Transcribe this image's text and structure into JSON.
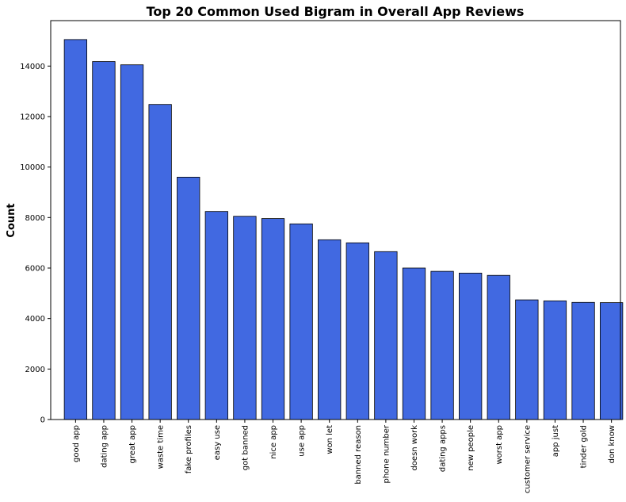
{
  "chart_data": {
    "type": "bar",
    "title": "Top 20 Common Used Bigram in Overall App Reviews",
    "xlabel": "",
    "ylabel": "Count",
    "ylim": [
      0,
      15800
    ],
    "yticks": [
      0,
      2000,
      4000,
      6000,
      8000,
      10000,
      12000,
      14000
    ],
    "grid": false,
    "bar_color": "#4169e1",
    "edge_color": "#000000",
    "categories": [
      "good app",
      "dating app",
      "great app",
      "waste time",
      "fake profiles",
      "easy use",
      "got banned",
      "nice app",
      "use app",
      "won let",
      "banned reason",
      "phone number",
      "doesn work",
      "dating apps",
      "new people",
      "worst app",
      "customer service",
      "app just",
      "tinder gold",
      "don know"
    ],
    "values": [
      15050,
      14180,
      14050,
      12480,
      9600,
      8240,
      8050,
      7960,
      7750,
      7120,
      7000,
      6650,
      6000,
      5870,
      5800,
      5710,
      4740,
      4700,
      4640,
      4630
    ]
  }
}
